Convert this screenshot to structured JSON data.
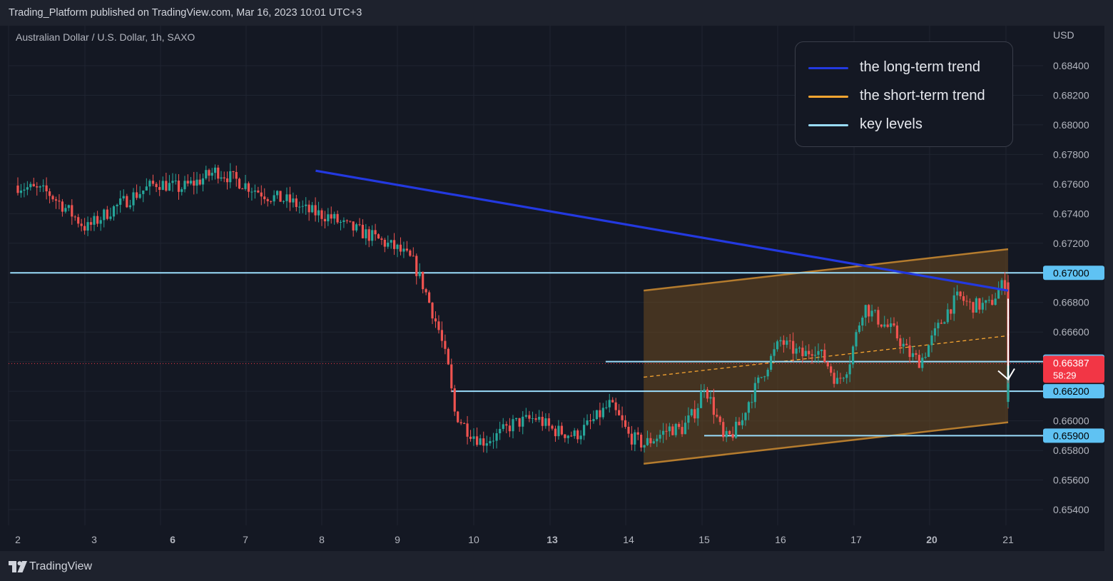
{
  "header": {
    "published_text": "Trading_Platform published on TradingView.com, Mar 16, 2023 10:01 UTC+3"
  },
  "footer": {
    "brand": "TradingView"
  },
  "colors": {
    "background": "#141823",
    "frame": "#1e222d",
    "up_candle": "#26a69a",
    "down_candle": "#ef5350",
    "long_term_trend": "#2339e0",
    "short_term_trend": "#f7a531",
    "key_levels": "#9adcfb",
    "channel_fill": "#6b4a20",
    "channel_border": "#b57c2e",
    "price_tag_key": "#5fc2f3",
    "price_tag_current": "#f23645",
    "arrow": "#ffffff"
  },
  "chart_data": {
    "type": "candlestick",
    "symbol_line": "Australian Dollar / U.S. Dollar, 1h, SAXO",
    "currency": "USD",
    "interval": "1h",
    "ylim": [
      0.653,
      0.6857
    ],
    "y_ticks": [
      "0.68400",
      "0.68200",
      "0.68000",
      "0.67800",
      "0.67600",
      "0.67400",
      "0.67200",
      "0.66800",
      "0.66600",
      "0.66000",
      "0.65800",
      "0.65600",
      "0.65400"
    ],
    "x_ticks": [
      {
        "label": "2",
        "bold": false
      },
      {
        "label": "3",
        "bold": false
      },
      {
        "label": "6",
        "bold": true
      },
      {
        "label": "7",
        "bold": false
      },
      {
        "label": "8",
        "bold": false
      },
      {
        "label": "9",
        "bold": false
      },
      {
        "label": "10",
        "bold": false
      },
      {
        "label": "13",
        "bold": true
      },
      {
        "label": "14",
        "bold": false
      },
      {
        "label": "15",
        "bold": false
      },
      {
        "label": "16",
        "bold": false
      },
      {
        "label": "17",
        "bold": false
      },
      {
        "label": "20",
        "bold": true
      },
      {
        "label": "21",
        "bold": false
      }
    ],
    "price_path": [
      [
        2.0,
        0.6759
      ],
      [
        2.4,
        0.6754
      ],
      [
        2.6,
        0.6745
      ],
      [
        2.9,
        0.673
      ],
      [
        3.0,
        0.6734
      ],
      [
        3.2,
        0.6742
      ],
      [
        3.5,
        0.6752
      ],
      [
        3.8,
        0.6761
      ],
      [
        4.1,
        0.6757
      ],
      [
        4.35,
        0.6762
      ],
      [
        4.6,
        0.6769
      ],
      [
        4.9,
        0.6762
      ],
      [
        5.3,
        0.6752
      ],
      [
        5.6,
        0.6748
      ],
      [
        5.8,
        0.6742
      ],
      [
        6.1,
        0.6738
      ],
      [
        6.3,
        0.6732
      ],
      [
        6.6,
        0.6726
      ],
      [
        7.0,
        0.6716
      ],
      [
        7.2,
        0.6708
      ],
      [
        7.35,
        0.669
      ],
      [
        7.55,
        0.666
      ],
      [
        7.7,
        0.6628
      ],
      [
        7.72,
        0.6608
      ],
      [
        7.9,
        0.6595
      ],
      [
        8.1,
        0.6586
      ],
      [
        8.3,
        0.659
      ],
      [
        8.5,
        0.6598
      ],
      [
        8.8,
        0.6602
      ],
      [
        9.0,
        0.6594
      ],
      [
        9.3,
        0.659
      ],
      [
        9.4,
        0.6594
      ],
      [
        9.6,
        0.6603
      ],
      [
        9.75,
        0.6611
      ],
      [
        9.9,
        0.66
      ],
      [
        10.0,
        0.659
      ],
      [
        10.2,
        0.6584
      ],
      [
        10.4,
        0.659
      ],
      [
        10.55,
        0.6595
      ],
      [
        10.7,
        0.6594
      ],
      [
        10.9,
        0.6608
      ],
      [
        11.0,
        0.6625
      ],
      [
        11.05,
        0.6618
      ],
      [
        11.2,
        0.6597
      ],
      [
        11.25,
        0.6587
      ],
      [
        11.35,
        0.659
      ],
      [
        11.5,
        0.66
      ],
      [
        11.55,
        0.661
      ],
      [
        11.65,
        0.662
      ],
      [
        11.75,
        0.663
      ],
      [
        11.85,
        0.664
      ],
      [
        12.0,
        0.6654
      ],
      [
        12.1,
        0.665
      ],
      [
        12.3,
        0.6644
      ],
      [
        12.45,
        0.665
      ],
      [
        12.6,
        0.664
      ],
      [
        12.75,
        0.6626
      ],
      [
        12.9,
        0.6638
      ],
      [
        13.0,
        0.6658
      ],
      [
        13.1,
        0.6678
      ],
      [
        13.3,
        0.6668
      ],
      [
        13.5,
        0.666
      ],
      [
        13.7,
        0.6645
      ],
      [
        13.85,
        0.664
      ],
      [
        14.0,
        0.6655
      ],
      [
        14.2,
        0.6674
      ],
      [
        14.35,
        0.6684
      ],
      [
        14.5,
        0.6678
      ],
      [
        14.75,
        0.6678
      ],
      [
        14.9,
        0.669
      ],
      [
        15.0,
        0.6696
      ],
      [
        15.1,
        0.6688
      ],
      [
        15.2,
        0.6673
      ],
      [
        15.3,
        0.666
      ],
      [
        15.4,
        0.6644
      ],
      [
        15.6,
        0.6624
      ],
      [
        15.7,
        0.6616
      ],
      [
        15.75,
        0.6612
      ],
      [
        15.85,
        0.6618
      ],
      [
        16.0,
        0.6625
      ],
      [
        16.2,
        0.6628
      ],
      [
        16.35,
        0.6633
      ],
      [
        16.45,
        0.6637
      ],
      [
        16.5,
        0.66387
      ]
    ],
    "current_price": "0.66387",
    "countdown": "58:29",
    "key_levels": [
      {
        "price": 0.67,
        "label": "0.67000",
        "start_x": 1.9
      },
      {
        "price": 0.664,
        "label": "0.66400",
        "start_x": 9.7
      },
      {
        "price": 0.662,
        "label": "0.66200",
        "start_x": 7.7
      },
      {
        "price": 0.659,
        "label": "0.65900",
        "start_x": 11.0
      }
    ],
    "long_term_trend": {
      "start": [
        5.92,
        0.6769
      ],
      "end": [
        17.1,
        0.6688
      ]
    },
    "channel": {
      "upper_start": [
        10.2,
        0.6688
      ],
      "upper_end": [
        17.1,
        0.6716
      ],
      "lower_start": [
        10.2,
        0.6571
      ],
      "lower_end": [
        17.1,
        0.6599
      ],
      "midline_start": [
        10.2,
        0.66295
      ],
      "midline_end": [
        17.1,
        0.66575
      ]
    },
    "projection_arrow": [
      [
        16.5,
        0.66425
      ],
      [
        16.8,
        0.66825
      ],
      [
        17.05,
        0.6628
      ]
    ],
    "legend": [
      {
        "label": "the long-term trend",
        "color": "#2339e0"
      },
      {
        "label": "the short-term trend",
        "color": "#f7a531"
      },
      {
        "label": "key levels",
        "color": "#9adcfb"
      }
    ]
  }
}
